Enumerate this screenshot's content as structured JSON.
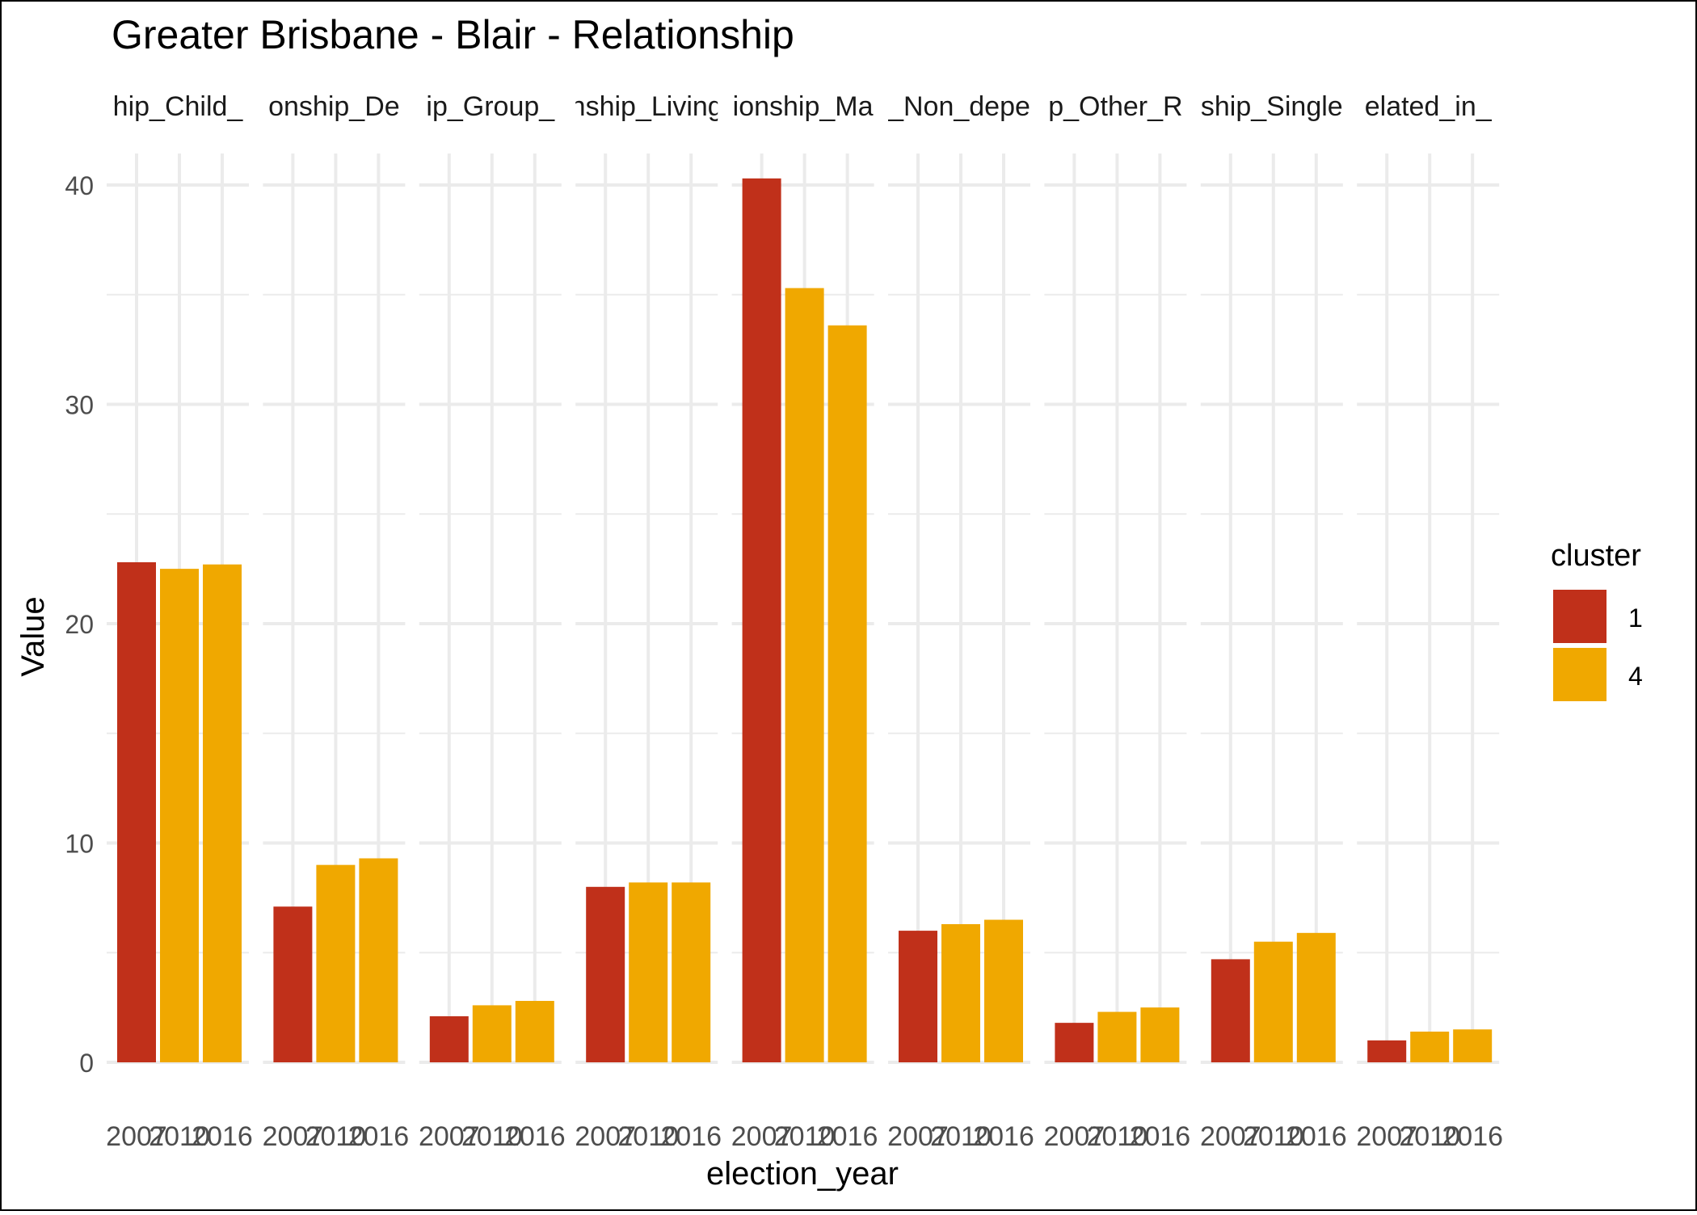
{
  "chart_data": {
    "type": "bar",
    "title": "Greater Brisbane - Blair - Relationship",
    "xlabel": "election_year",
    "ylabel": "Value",
    "ylim": [
      0,
      42
    ],
    "yticks": [
      0,
      10,
      20,
      30,
      40
    ],
    "grid": true,
    "legend": {
      "title": "cluster",
      "position": "right",
      "entries": [
        {
          "label": "1",
          "color": "#C0301A"
        },
        {
          "label": "4",
          "color": "#F0A800"
        }
      ]
    },
    "years": [
      "2007",
      "2010",
      "2016"
    ],
    "year_tick_labels": [
      "2007",
      "2010",
      "2016"
    ],
    "panels": [
      {
        "strip": "hip_Child_",
        "values": [
          22.8,
          22.5,
          22.7
        ],
        "clusters": [
          "1",
          "4",
          "4"
        ]
      },
      {
        "strip": "onship_De",
        "values": [
          7.1,
          9.0,
          9.3
        ],
        "clusters": [
          "1",
          "4",
          "4"
        ]
      },
      {
        "strip": "ip_Group_",
        "values": [
          2.1,
          2.6,
          2.8
        ],
        "clusters": [
          "1",
          "4",
          "4"
        ]
      },
      {
        "strip": "nship_Living",
        "values": [
          8.0,
          8.2,
          8.2
        ],
        "clusters": [
          "1",
          "4",
          "4"
        ]
      },
      {
        "strip": "ionship_Ma",
        "values": [
          40.3,
          35.3,
          33.6
        ],
        "clusters": [
          "1",
          "4",
          "4"
        ]
      },
      {
        "strip": "_Non_depe",
        "values": [
          6.0,
          6.3,
          6.5
        ],
        "clusters": [
          "1",
          "4",
          "4"
        ]
      },
      {
        "strip": "p_Other_R",
        "values": [
          1.8,
          2.3,
          2.5
        ],
        "clusters": [
          "1",
          "4",
          "4"
        ]
      },
      {
        "strip": "ship_Single",
        "values": [
          4.7,
          5.5,
          5.9
        ],
        "clusters": [
          "1",
          "4",
          "4"
        ]
      },
      {
        "strip": "elated_in_",
        "values": [
          1.0,
          1.4,
          1.5
        ],
        "clusters": [
          "1",
          "4",
          "4"
        ]
      }
    ]
  }
}
